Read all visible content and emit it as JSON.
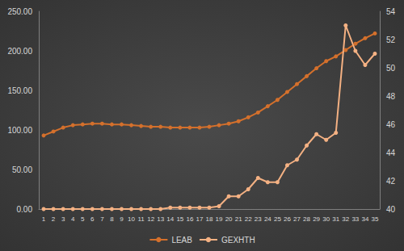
{
  "chart_data": {
    "type": "line",
    "categories": [
      "1",
      "2",
      "3",
      "4",
      "5",
      "6",
      "7",
      "8",
      "9",
      "10",
      "11",
      "12",
      "13",
      "14",
      "15",
      "16",
      "17",
      "18",
      "19",
      "20",
      "21",
      "22",
      "23",
      "24",
      "25",
      "26",
      "27",
      "28",
      "29",
      "30",
      "31",
      "32",
      "33",
      "34",
      "35"
    ],
    "series": [
      {
        "name": "LEAB",
        "color": "#d4702c",
        "marker": "circle",
        "line_style": "solid",
        "values": [
          93,
          98,
          103,
          106,
          107,
          108,
          108,
          107,
          107,
          106,
          105,
          104,
          104,
          103,
          103,
          103,
          103,
          104,
          106,
          108,
          111,
          116,
          122,
          130,
          138,
          148,
          158,
          168,
          178,
          187,
          193,
          201,
          209,
          216,
          222
        ]
      },
      {
        "name": "GEXHTH",
        "color": "#f4b183",
        "marker": "circle",
        "line_style": "solid",
        "axis": "y2",
        "values": [
          40,
          40,
          40,
          40,
          40,
          40,
          40,
          40,
          40,
          40,
          40,
          40,
          40,
          40.1,
          40.1,
          40.1,
          40.1,
          40.1,
          40.2,
          40.9,
          40.9,
          41.4,
          42.2,
          41.9,
          41.9,
          43.1,
          43.5,
          44.5,
          45.3,
          44.9,
          45.4,
          53,
          51.2,
          50.2,
          51
        ]
      }
    ],
    "ylim": [
      0,
      250
    ],
    "yticks": [
      {
        "value": 0,
        "label": "0.00"
      },
      {
        "value": 50,
        "label": "50.00"
      },
      {
        "value": 100,
        "label": "100.00"
      },
      {
        "value": 150,
        "label": "150.00"
      },
      {
        "value": 200,
        "label": "200.00"
      },
      {
        "value": 250,
        "label": "250.00"
      }
    ],
    "y2lim": [
      40,
      54
    ],
    "y2ticks": [
      40,
      42,
      44,
      46,
      48,
      50,
      52,
      54
    ],
    "grid": false,
    "legend": "bottom"
  }
}
